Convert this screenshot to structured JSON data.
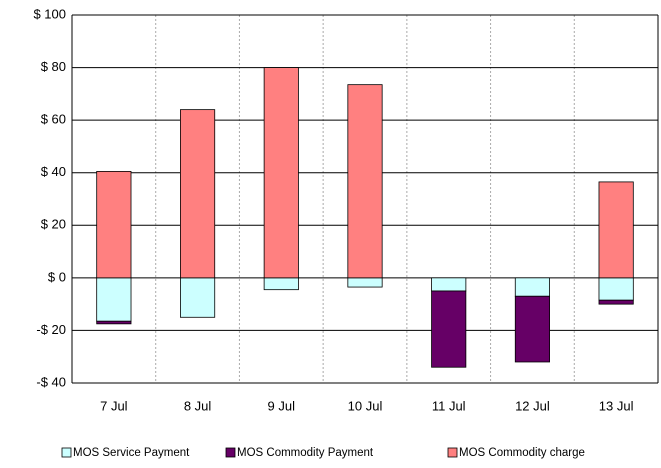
{
  "chart_data": {
    "type": "stacked-bar",
    "categories": [
      "7 Jul",
      "8 Jul",
      "9 Jul",
      "10 Jul",
      "11 Jul",
      "12 Jul",
      "13 Jul"
    ],
    "series": [
      {
        "name": "MOS Service Payment",
        "color": "#ccffff",
        "values": [
          -16.5,
          -15,
          -4.5,
          -3.5,
          -5,
          -7,
          -8.5
        ]
      },
      {
        "name": "MOS Commodity Payment",
        "color": "#660066",
        "values": [
          -1,
          0,
          0,
          0,
          -29,
          -25,
          -1.5
        ]
      },
      {
        "name": "MOS Commodity charge",
        "color": "#ff8080",
        "values": [
          40.5,
          64,
          80,
          73.5,
          0,
          0,
          36.5
        ]
      }
    ],
    "ylim": [
      -40,
      100
    ],
    "yticks": [
      {
        "value": -40,
        "label": "-$ 40"
      },
      {
        "value": -20,
        "label": "-$ 20"
      },
      {
        "value": 0,
        "label": "$ 0"
      },
      {
        "value": 20,
        "label": "$ 20"
      },
      {
        "value": 40,
        "label": "$ 40"
      },
      {
        "value": 60,
        "label": "$ 60"
      },
      {
        "value": 80,
        "label": "$ 80"
      },
      {
        "value": 100,
        "label": "$ 100"
      }
    ],
    "grid": true,
    "legend": "bottom"
  }
}
